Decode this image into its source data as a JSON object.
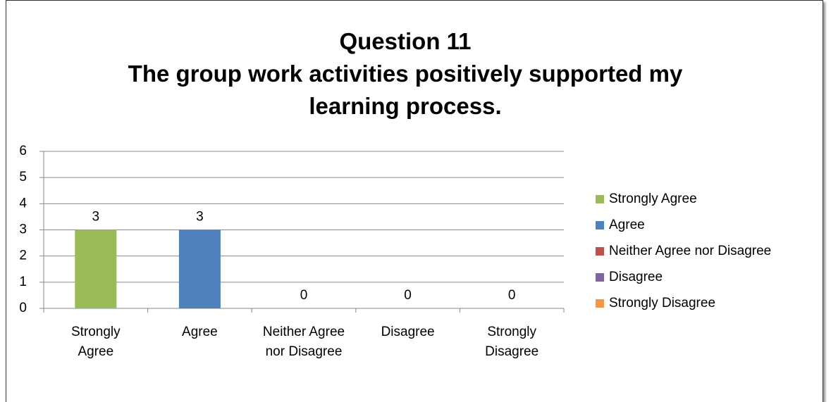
{
  "chart_data": {
    "type": "bar",
    "title": "Question  11",
    "subtitle": "The group work activities positively supported my learning process.",
    "categories": [
      "Strongly Agree",
      "Agree",
      "Neither Agree nor Disagree",
      "Disagree",
      "Strongly Disagree"
    ],
    "values": [
      3,
      3,
      0,
      0,
      0
    ],
    "colors": [
      "#9bbb59",
      "#4f81bd",
      "#c0504d",
      "#8064a2",
      "#f79646"
    ],
    "ylim": [
      0,
      6
    ],
    "yticks": [
      0,
      1,
      2,
      3,
      4,
      5,
      6
    ],
    "grid": true,
    "legend": "right"
  }
}
